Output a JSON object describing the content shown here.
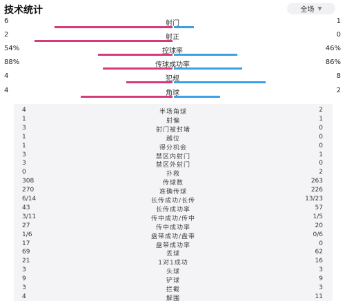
{
  "header": {
    "title": "技术统计",
    "scope": "全场",
    "chevron_icon": "chevron-down-icon"
  },
  "colors": {
    "home": "#d63a79",
    "away": "#3aa0e6"
  },
  "main_stats": [
    {
      "name": "射门",
      "left": "6",
      "right": "1",
      "left_share": 0.857,
      "right_share": 0.143
    },
    {
      "name": "射正",
      "left": "2",
      "right": "0",
      "left_share": 1.0,
      "right_share": 0.0
    },
    {
      "name": "控球率",
      "left": "54%",
      "right": "46%",
      "left_share": 0.54,
      "right_share": 0.46
    },
    {
      "name": "传球成功率",
      "left": "88%",
      "right": "86%",
      "left_share": 0.506,
      "right_share": 0.494
    },
    {
      "name": "犯规",
      "left": "4",
      "right": "8",
      "left_share": 0.333,
      "right_share": 0.667
    },
    {
      "name": "角球",
      "left": "4",
      "right": "2",
      "left_share": 0.667,
      "right_share": 0.333
    }
  ],
  "detail_stats": [
    {
      "name": "半场角球",
      "left": "4",
      "right": "2"
    },
    {
      "name": "射偏",
      "left": "1",
      "right": "1"
    },
    {
      "name": "射门被封堵",
      "left": "3",
      "right": "0"
    },
    {
      "name": "越位",
      "left": "1",
      "right": "0"
    },
    {
      "name": "得分机会",
      "left": "1",
      "right": "0"
    },
    {
      "name": "禁区内射门",
      "left": "3",
      "right": "1"
    },
    {
      "name": "禁区外射门",
      "left": "3",
      "right": "0"
    },
    {
      "name": "扑救",
      "left": "0",
      "right": "2"
    },
    {
      "name": "传球数",
      "left": "308",
      "right": "263"
    },
    {
      "name": "准确传球",
      "left": "270",
      "right": "226"
    },
    {
      "name": "长传成功/长传",
      "left": "6/14",
      "right": "13/23"
    },
    {
      "name": "长传成功率",
      "left": "43",
      "right": "57"
    },
    {
      "name": "传中成功/传中",
      "left": "3/11",
      "right": "1/5"
    },
    {
      "name": "传中成功率",
      "left": "27",
      "right": "20"
    },
    {
      "name": "盘带成功/盘带",
      "left": "1/6",
      "right": "0/6"
    },
    {
      "name": "盘带成功率",
      "left": "17",
      "right": "0"
    },
    {
      "name": "丢球",
      "left": "69",
      "right": "62"
    },
    {
      "name": "1对1成功",
      "left": "21",
      "right": "16"
    },
    {
      "name": "头球",
      "left": "3",
      "right": "3"
    },
    {
      "name": "铲球",
      "left": "9",
      "right": "9"
    },
    {
      "name": "拦截",
      "left": "3",
      "right": "3"
    },
    {
      "name": "解围",
      "left": "4",
      "right": "11"
    }
  ]
}
